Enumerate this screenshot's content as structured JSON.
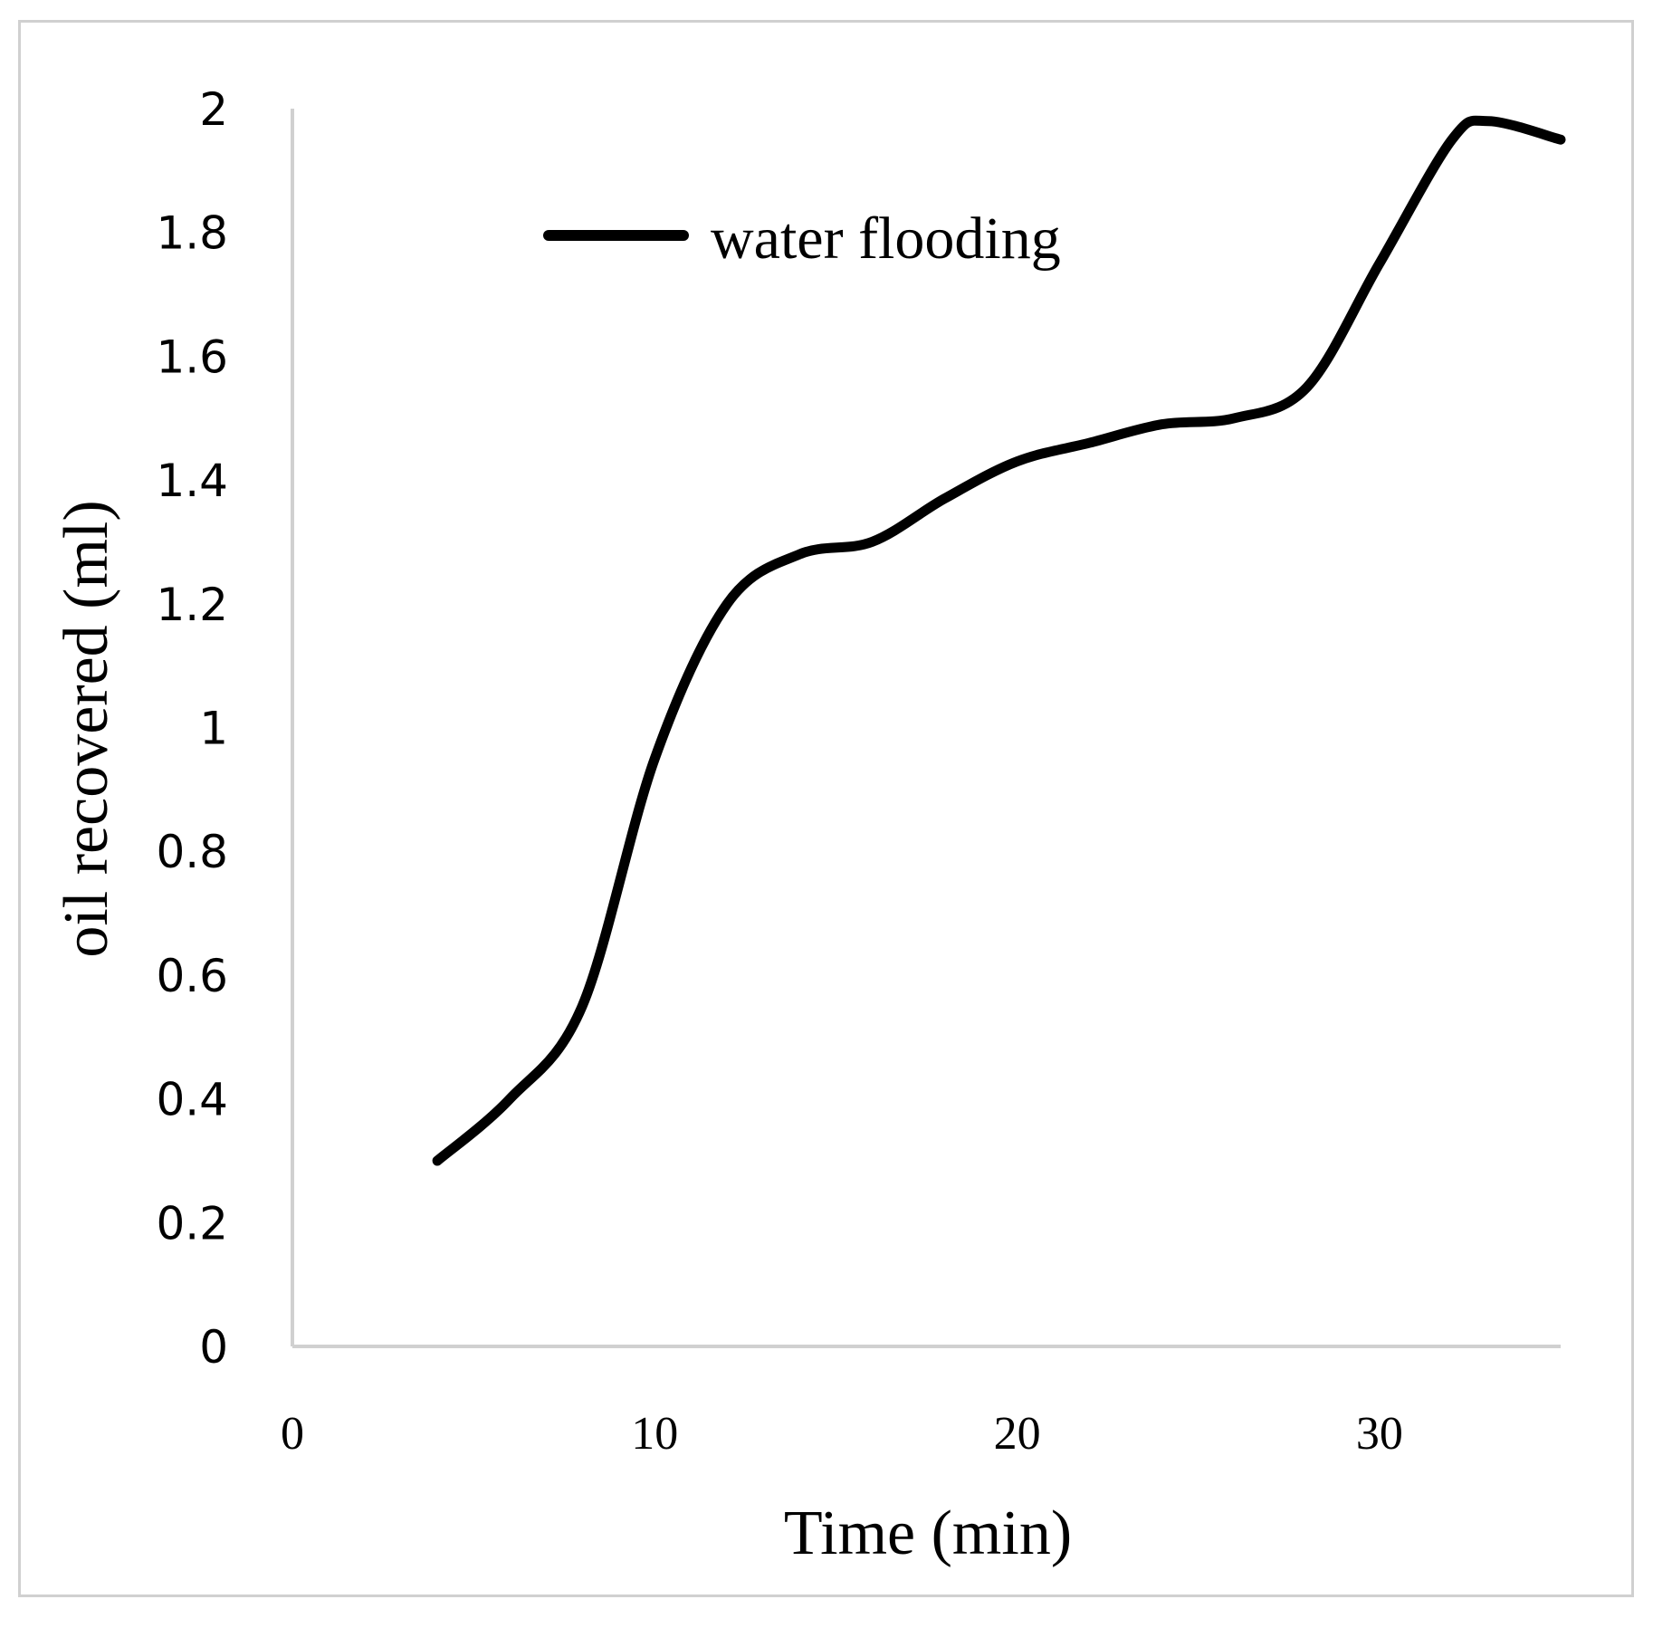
{
  "chart_data": {
    "type": "line",
    "title": "",
    "xlabel": "Time (min)",
    "ylabel": "oil recovered (ml)",
    "xlim": [
      0,
      35
    ],
    "ylim": [
      0,
      2
    ],
    "xticks": [
      0,
      10,
      20,
      30
    ],
    "xtick_labels": [
      "0",
      "10",
      "20",
      "30"
    ],
    "yticks": [
      0,
      0.2,
      0.4,
      0.6,
      0.8,
      1,
      1.2,
      1.4,
      1.6,
      1.8,
      2
    ],
    "ytick_labels": [
      "0",
      "0.2",
      "0.4",
      "0.6",
      "0.8",
      "1",
      "1.2",
      "1.4",
      "1.6",
      "1.8",
      "2"
    ],
    "grid": false,
    "legend_position": "top-left",
    "series": [
      {
        "name": "water flooding",
        "color": "#000000",
        "x": [
          4,
          6,
          8,
          10,
          12,
          14,
          16,
          18,
          20,
          22,
          24,
          26,
          28,
          30,
          32,
          33,
          35
        ],
        "y": [
          0.3,
          0.4,
          0.55,
          0.95,
          1.2,
          1.28,
          1.3,
          1.37,
          1.43,
          1.46,
          1.49,
          1.5,
          1.55,
          1.75,
          1.95,
          1.98,
          1.95
        ]
      }
    ]
  }
}
